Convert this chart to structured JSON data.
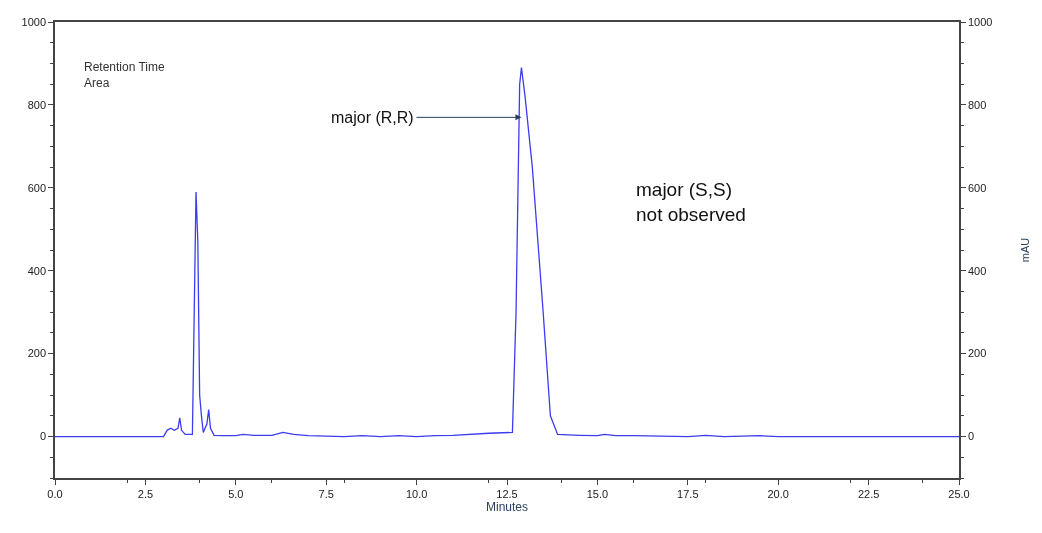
{
  "chart_data": {
    "type": "line",
    "xlabel": "Minutes",
    "y2label": "mAU",
    "x": [
      0,
      3.0,
      3.1,
      3.2,
      3.3,
      3.4,
      3.45,
      3.5,
      3.6,
      3.8,
      3.85,
      3.9,
      3.95,
      4.0,
      4.05,
      4.1,
      4.2,
      4.25,
      4.3,
      4.4,
      4.6,
      5.0,
      5.2,
      5.5,
      6.0,
      6.3,
      6.6,
      7.0,
      8.0,
      8.5,
      9.0,
      9.5,
      10.0,
      10.5,
      11.0,
      12.0,
      12.65,
      12.75,
      12.85,
      12.9,
      13.0,
      13.2,
      13.5,
      13.7,
      13.9,
      14.5,
      15.0,
      15.2,
      15.5,
      16.0,
      17.5,
      18.0,
      18.5,
      19.5,
      20,
      25
    ],
    "series": [
      {
        "color": "#3c3cf0",
        "values": [
          0,
          0,
          15,
          20,
          15,
          20,
          45,
          15,
          5,
          5,
          300,
          590,
          470,
          100,
          50,
          10,
          30,
          65,
          20,
          3,
          2,
          2,
          5,
          3,
          3,
          10,
          5,
          2,
          0,
          2,
          0,
          2,
          0,
          2,
          3,
          8,
          10,
          300,
          850,
          890,
          820,
          650,
          300,
          50,
          5,
          3,
          2,
          5,
          2,
          2,
          0,
          3,
          0,
          2,
          0,
          0
        ]
      }
    ],
    "xlim": [
      0,
      25
    ],
    "xticks": [
      {
        "value": 0,
        "label": "0.0"
      },
      {
        "value": 2.5,
        "label": "2.5"
      },
      {
        "value": 5,
        "label": "5.0"
      },
      {
        "value": 7.5,
        "label": "7.5"
      },
      {
        "value": 10,
        "label": "10.0"
      },
      {
        "value": 12.5,
        "label": "12.5"
      },
      {
        "value": 15,
        "label": "15.0"
      },
      {
        "value": 17.5,
        "label": "17.5"
      },
      {
        "value": 20,
        "label": "20.0"
      },
      {
        "value": 22.5,
        "label": "22.5"
      },
      {
        "value": 25,
        "label": "25.0"
      }
    ],
    "ylim": [
      -100,
      1000
    ],
    "yticks": [
      0,
      200,
      400,
      600,
      800,
      1000
    ],
    "y2lim": [
      -100,
      1000
    ],
    "y2ticks": [
      0,
      200,
      400,
      600,
      800,
      1000
    ],
    "annotations": [
      {
        "text": "major (R,R)",
        "x": 12.9,
        "y": 770
      },
      "major (S,S)\nnot observed",
      "Retention Time\nArea"
    ],
    "marker": "none",
    "line_style": "solid"
  }
}
